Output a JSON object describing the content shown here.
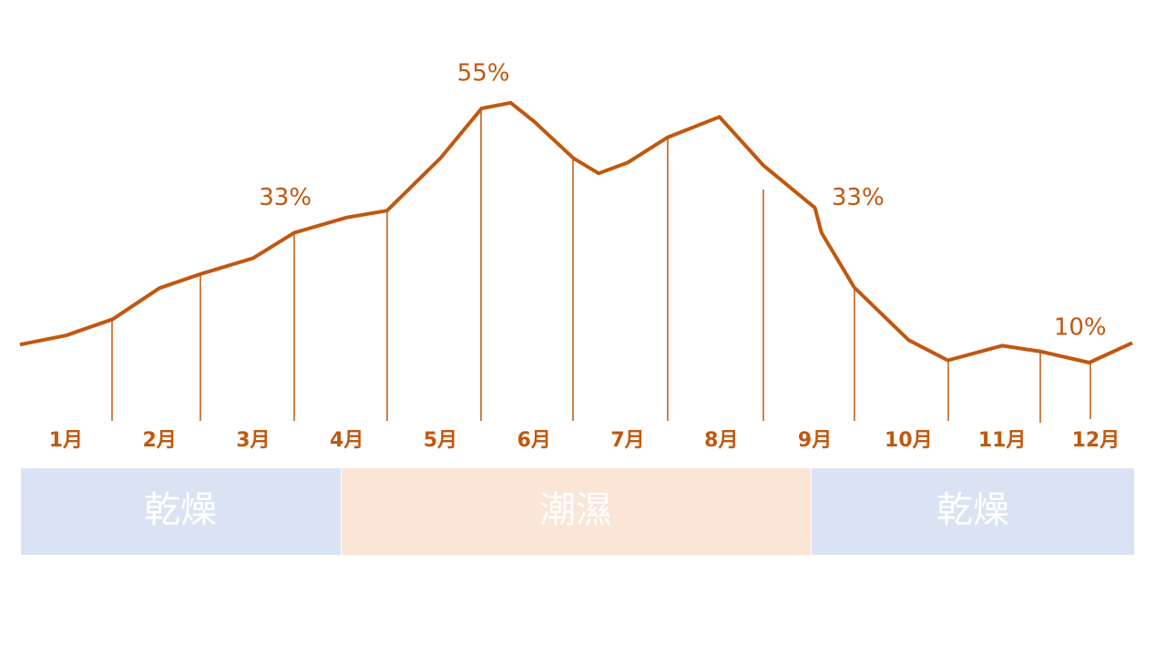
{
  "chart_data": {
    "type": "line",
    "x": [
      0.51,
      1,
      1.5,
      2,
      2.44,
      3,
      3.44,
      4,
      4.43,
      5,
      5.44,
      5.75,
      6,
      6.42,
      6.69,
      7,
      7.43,
      7.98,
      8.45,
      9,
      9.07,
      9.42,
      10,
      10.42,
      11,
      11.4,
      11.93,
      12.39
    ],
    "values": [
      13.2,
      14.8,
      17.7,
      23.2,
      25.7,
      28.5,
      33,
      35.7,
      36.9,
      46.2,
      55,
      56,
      52.7,
      46.2,
      43.5,
      45.4,
      49.9,
      53.5,
      44.9,
      37.4,
      33,
      23.3,
      14,
      10.4,
      13,
      12,
      10,
      13.5
    ],
    "color": "#c0580f",
    "xlim": [
      0.51,
      12.39
    ],
    "ylim": [
      0,
      65
    ],
    "xticks": [
      {
        "value": 1,
        "label": "1月"
      },
      {
        "value": 2,
        "label": "2月"
      },
      {
        "value": 3,
        "label": "3月"
      },
      {
        "value": 4,
        "label": "4月"
      },
      {
        "value": 5,
        "label": "5月"
      },
      {
        "value": 6,
        "label": "6月"
      },
      {
        "value": 7,
        "label": "7月"
      },
      {
        "value": 8,
        "label": "8月"
      },
      {
        "value": 9,
        "label": "9月"
      },
      {
        "value": 10,
        "label": "10月"
      },
      {
        "value": 11,
        "label": "11月"
      },
      {
        "value": 12,
        "label": "12月"
      }
    ],
    "annotations": [
      {
        "label": "33%",
        "x": 3.44,
        "value": 33
      },
      {
        "label": "55%",
        "x": 5.44,
        "value": 55
      },
      {
        "label": "33%",
        "x": 9.07,
        "value": 33
      },
      {
        "label": "10%",
        "x": 11.93,
        "value": 10
      }
    ],
    "bands": [
      {
        "label": "乾燥",
        "color": "#dae3f3"
      },
      {
        "label": "潮濕",
        "color": "#fbe5d6"
      },
      {
        "label": "乾燥",
        "color": "#dae3f3"
      }
    ]
  }
}
